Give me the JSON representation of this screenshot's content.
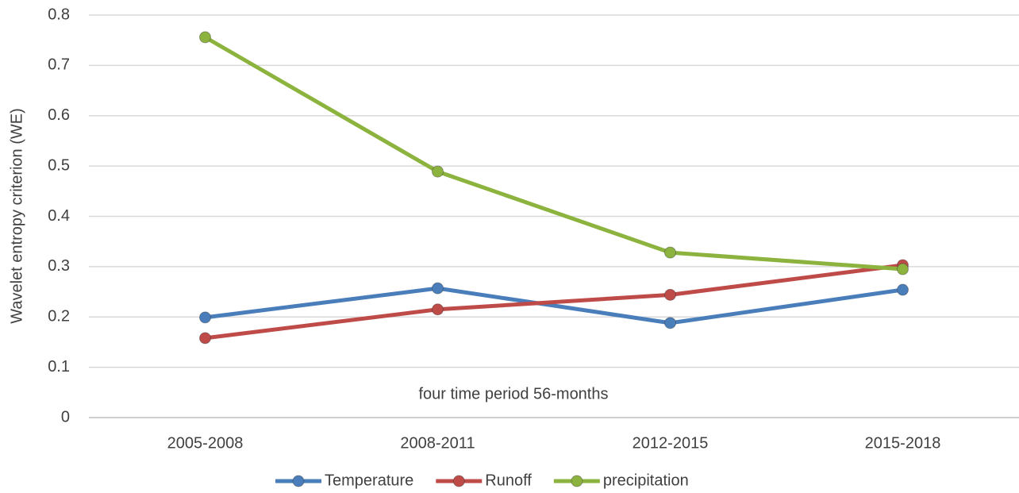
{
  "chart_data": {
    "type": "line",
    "y_label": "Wavelet entropy criterion (WE)",
    "x_label": "four time period 56-months",
    "categories": [
      "2005-2008",
      "2008-2011",
      "2012-2015",
      "2015-2018"
    ],
    "series": [
      {
        "name": "Temperature",
        "color": "#4a7ebb",
        "values": [
          0.199,
          0.257,
          0.188,
          0.254
        ]
      },
      {
        "name": "Runoff",
        "color": "#be4b48",
        "values": [
          0.158,
          0.215,
          0.244,
          0.303
        ]
      },
      {
        "name": "precipitation",
        "color": "#8db33f",
        "values": [
          0.756,
          0.489,
          0.328,
          0.295
        ]
      }
    ],
    "ylim": [
      0,
      0.8
    ],
    "yticks": [
      0,
      0.1,
      0.2,
      0.3,
      0.4,
      0.5,
      0.6,
      0.7,
      0.8
    ],
    "grid": true,
    "legend": "bottom"
  }
}
